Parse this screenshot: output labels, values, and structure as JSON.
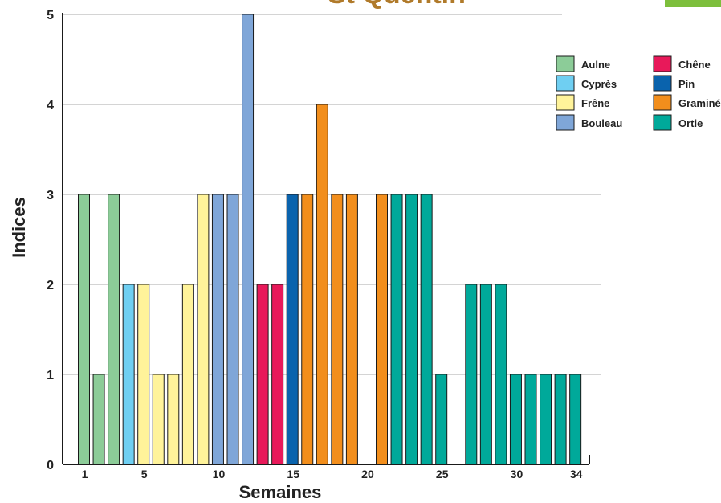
{
  "chart_data": {
    "type": "bar",
    "title_fragment": "St Quentin",
    "xlabel": "Semaines",
    "ylabel": "Indices",
    "ylim": [
      0,
      5
    ],
    "yticks": [
      0,
      1,
      2,
      3,
      4,
      5
    ],
    "xtick_labels": [
      {
        "week": 1,
        "label": "1"
      },
      {
        "week": 5,
        "label": "5"
      },
      {
        "week": 10,
        "label": "10"
      },
      {
        "week": 15,
        "label": "15"
      },
      {
        "week": 20,
        "label": "20"
      },
      {
        "week": 25,
        "label": "25"
      },
      {
        "week": 30,
        "label": "30"
      },
      {
        "week": 34,
        "label": "34"
      }
    ],
    "grid": true,
    "legend_placement": "top-right",
    "legend": [
      {
        "name": "Aulne",
        "color": "#8ccc98"
      },
      {
        "name": "Cyprès",
        "color": "#6fcff2"
      },
      {
        "name": "Frêne",
        "color": "#fff39a"
      },
      {
        "name": "Bouleau",
        "color": "#7fa6d8"
      },
      {
        "name": "Chêne",
        "color": "#e8195a"
      },
      {
        "name": "Pin",
        "color": "#0a63ad"
      },
      {
        "name": "Graminées",
        "color": "#f28e1c"
      },
      {
        "name": "Ortie",
        "color": "#00a99a"
      }
    ],
    "bars": [
      {
        "week": 1,
        "value": 3,
        "species": "Aulne"
      },
      {
        "week": 2,
        "value": 1,
        "species": "Aulne"
      },
      {
        "week": 3,
        "value": 3,
        "species": "Aulne"
      },
      {
        "week": 4,
        "value": 2,
        "species": "Cyprès"
      },
      {
        "week": 5,
        "value": 2,
        "species": "Frêne"
      },
      {
        "week": 6,
        "value": 1,
        "species": "Frêne"
      },
      {
        "week": 7,
        "value": 1,
        "species": "Frêne"
      },
      {
        "week": 8,
        "value": 2,
        "species": "Frêne"
      },
      {
        "week": 9,
        "value": 3,
        "species": "Frêne"
      },
      {
        "week": 10,
        "value": 3,
        "species": "Bouleau"
      },
      {
        "week": 11,
        "value": 3,
        "species": "Bouleau"
      },
      {
        "week": 12,
        "value": 5,
        "species": "Bouleau"
      },
      {
        "week": 13,
        "value": 2,
        "species": "Chêne"
      },
      {
        "week": 14,
        "value": 2,
        "species": "Chêne"
      },
      {
        "week": 15,
        "value": 3,
        "species": "Pin"
      },
      {
        "week": 16,
        "value": 3,
        "species": "Graminées"
      },
      {
        "week": 17,
        "value": 4,
        "species": "Graminées"
      },
      {
        "week": 18,
        "value": 3,
        "species": "Graminées"
      },
      {
        "week": 19,
        "value": 3,
        "species": "Graminées"
      },
      {
        "week": 21,
        "value": 3,
        "species": "Graminées"
      },
      {
        "week": 22,
        "value": 3,
        "species": "Ortie"
      },
      {
        "week": 23,
        "value": 3,
        "species": "Ortie"
      },
      {
        "week": 24,
        "value": 3,
        "species": "Ortie"
      },
      {
        "week": 25,
        "value": 1,
        "species": "Ortie"
      },
      {
        "week": 27,
        "value": 2,
        "species": "Ortie"
      },
      {
        "week": 28,
        "value": 2,
        "species": "Ortie"
      },
      {
        "week": 29,
        "value": 2,
        "species": "Ortie"
      },
      {
        "week": 30,
        "value": 1,
        "species": "Ortie"
      },
      {
        "week": 31,
        "value": 1,
        "species": "Ortie"
      },
      {
        "week": 32,
        "value": 1,
        "species": "Ortie"
      },
      {
        "week": 33,
        "value": 1,
        "species": "Ortie"
      },
      {
        "week": 34,
        "value": 1,
        "species": "Ortie"
      }
    ]
  },
  "corner_tab_color": "#7dbf3c"
}
